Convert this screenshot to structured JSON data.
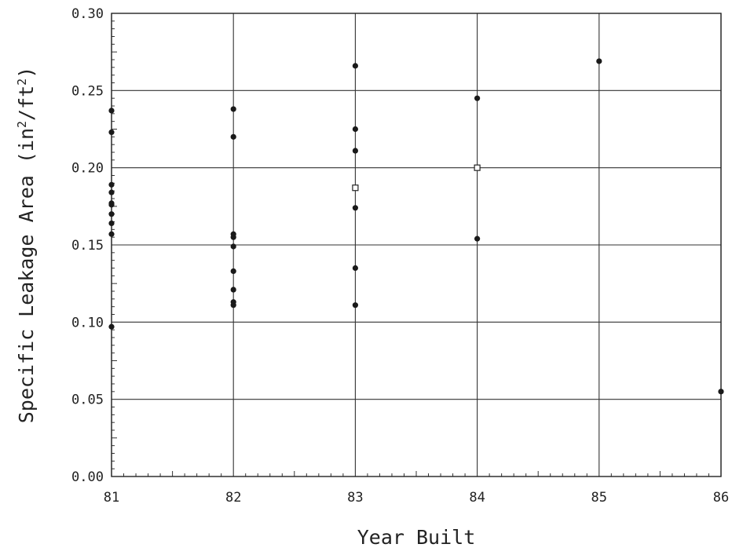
{
  "chart_data": {
    "type": "scatter",
    "title": "",
    "xlabel": "Year Built",
    "ylabel_main": "Specific Leakage Area (in",
    "ylabel_sup1": "2",
    "ylabel_mid": "/ft",
    "ylabel_sup2": "2",
    "ylabel_end": ")",
    "xlim": [
      81,
      86
    ],
    "ylim": [
      0.0,
      0.3
    ],
    "x_ticks": [
      "81",
      "82",
      "83",
      "84",
      "85",
      "86"
    ],
    "y_ticks": [
      "0.00",
      "0.05",
      "0.10",
      "0.15",
      "0.20",
      "0.25",
      "0.30"
    ],
    "grid": true,
    "series": [
      {
        "marker": "filled-circle",
        "points": [
          {
            "x": 81,
            "y": 0.237
          },
          {
            "x": 81,
            "y": 0.223
          },
          {
            "x": 81,
            "y": 0.189
          },
          {
            "x": 81,
            "y": 0.184
          },
          {
            "x": 81,
            "y": 0.177
          },
          {
            "x": 81,
            "y": 0.176
          },
          {
            "x": 81,
            "y": 0.17
          },
          {
            "x": 81,
            "y": 0.164
          },
          {
            "x": 81,
            "y": 0.157
          },
          {
            "x": 81,
            "y": 0.097
          },
          {
            "x": 82,
            "y": 0.238
          },
          {
            "x": 82,
            "y": 0.22
          },
          {
            "x": 82,
            "y": 0.157
          },
          {
            "x": 82,
            "y": 0.155
          },
          {
            "x": 82,
            "y": 0.149
          },
          {
            "x": 82,
            "y": 0.133
          },
          {
            "x": 82,
            "y": 0.121
          },
          {
            "x": 82,
            "y": 0.113
          },
          {
            "x": 82,
            "y": 0.111
          },
          {
            "x": 83,
            "y": 0.266
          },
          {
            "x": 83,
            "y": 0.225
          },
          {
            "x": 83,
            "y": 0.211
          },
          {
            "x": 83,
            "y": 0.174
          },
          {
            "x": 83,
            "y": 0.135
          },
          {
            "x": 83,
            "y": 0.111
          },
          {
            "x": 84,
            "y": 0.245
          },
          {
            "x": 84,
            "y": 0.154
          },
          {
            "x": 85,
            "y": 0.269
          },
          {
            "x": 86,
            "y": 0.055
          }
        ]
      },
      {
        "marker": "open-square",
        "points": [
          {
            "x": 83,
            "y": 0.187
          },
          {
            "x": 84,
            "y": 0.2
          }
        ]
      }
    ]
  }
}
